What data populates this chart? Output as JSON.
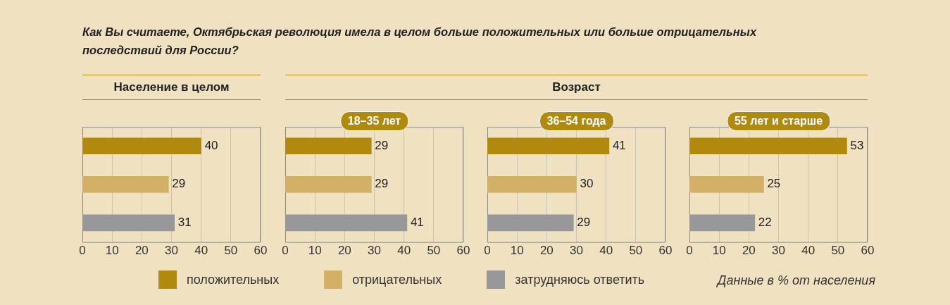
{
  "chart_data": [
    {
      "type": "bar",
      "orientation": "horizontal",
      "stacked": true,
      "title": "Население в целом",
      "annotations": [
        "Как Вы считаете, Октябрьская революция имела в целом больше положительных или больше отрицательных последствий для России?",
        "Данные в % от населения",
        "Возраст"
      ],
      "categories": [
        null,
        null,
        null
      ],
      "series": [
        {
          "name": "положительных",
          "color": "#b08a0e",
          "values": [
            40,
            null,
            null
          ]
        },
        {
          "name": "отрицательных",
          "color": "#d3b068",
          "values": [
            null,
            29,
            null
          ]
        },
        {
          "name": "затрудняюсь ответить",
          "color": "#98989a",
          "values": [
            null,
            null,
            31
          ]
        }
      ],
      "xlim": [
        0,
        60
      ],
      "xticks": [
        0,
        10,
        20,
        30,
        40,
        50,
        60
      ],
      "grid": "x",
      "legend": "bottom",
      "data_labels": true
    },
    {
      "type": "bar",
      "orientation": "horizontal",
      "stacked": true,
      "title": "18–35 лет",
      "categories": [
        null,
        null,
        null
      ],
      "series": [
        {
          "color": "#b08a0e",
          "values": [
            29,
            null,
            null
          ]
        },
        {
          "color": "#d3b068",
          "values": [
            null,
            29,
            null
          ]
        },
        {
          "color": "#98989a",
          "values": [
            null,
            null,
            41
          ]
        }
      ],
      "xlim": [
        0,
        60
      ],
      "xticks": [
        0,
        10,
        20,
        30,
        40,
        50,
        60
      ],
      "grid": "x",
      "data_labels": true
    },
    {
      "type": "bar",
      "orientation": "horizontal",
      "stacked": true,
      "title": "36–54 года",
      "categories": [
        null,
        null,
        null
      ],
      "series": [
        {
          "color": "#b08a0e",
          "values": [
            41,
            null,
            null
          ]
        },
        {
          "color": "#d3b068",
          "values": [
            null,
            30,
            null
          ]
        },
        {
          "color": "#98989a",
          "values": [
            null,
            null,
            29
          ]
        }
      ],
      "xlim": [
        0,
        60
      ],
      "xticks": [
        0,
        10,
        20,
        30,
        40,
        50,
        60
      ],
      "grid": "x",
      "data_labels": true
    },
    {
      "type": "bar",
      "orientation": "horizontal",
      "stacked": true,
      "title": "55 лет и старше",
      "categories": [
        null,
        null,
        null
      ],
      "series": [
        {
          "color": "#b08a0e",
          "values": [
            53,
            null,
            null
          ]
        },
        {
          "color": "#d3b068",
          "values": [
            null,
            25,
            null
          ]
        },
        {
          "color": "#98989a",
          "values": [
            null,
            null,
            22
          ]
        }
      ],
      "xlim": [
        0,
        60
      ],
      "xticks": [
        0,
        10,
        20,
        30,
        40,
        50,
        60
      ],
      "grid": "x",
      "data_labels": true
    }
  ]
}
